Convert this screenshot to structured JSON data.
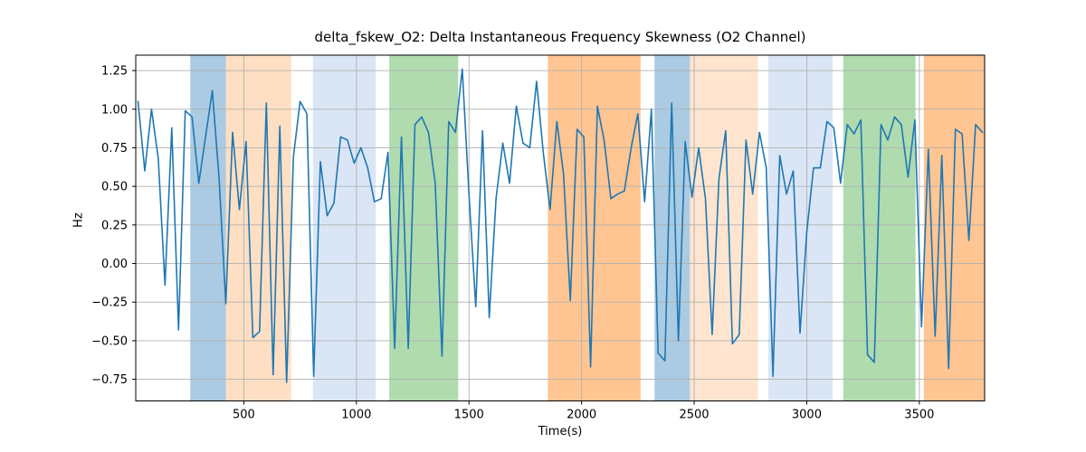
{
  "figure": {
    "title": "delta_fskew_O2: Delta Instantaneous Frequency Skewness (O2 Channel)",
    "xlabel": "Time(s)",
    "ylabel": "Hz"
  },
  "chart_data": {
    "type": "line",
    "title": "delta_fskew_O2: Delta Instantaneous Frequency Skewness (O2 Channel)",
    "xlabel": "Time(s)",
    "ylabel": "Hz",
    "xlim": [
      20,
      3790
    ],
    "ylim": [
      -0.89,
      1.35
    ],
    "xticks": [
      500,
      1000,
      1500,
      2000,
      2500,
      3000,
      3500
    ],
    "yticks": [
      -0.75,
      -0.5,
      -0.25,
      0.0,
      0.25,
      0.5,
      0.75,
      1.0,
      1.25
    ],
    "grid": true,
    "legend": false,
    "line_color": "#1f77b4",
    "grid_color": "#b0b0b0",
    "x": [
      30,
      60,
      90,
      120,
      150,
      180,
      210,
      240,
      270,
      300,
      330,
      360,
      390,
      420,
      450,
      480,
      510,
      540,
      570,
      600,
      630,
      660,
      690,
      720,
      750,
      780,
      810,
      840,
      870,
      900,
      930,
      960,
      990,
      1020,
      1050,
      1080,
      1110,
      1140,
      1170,
      1200,
      1230,
      1260,
      1290,
      1320,
      1350,
      1380,
      1410,
      1440,
      1470,
      1500,
      1530,
      1560,
      1590,
      1620,
      1650,
      1680,
      1710,
      1740,
      1770,
      1800,
      1830,
      1860,
      1890,
      1920,
      1950,
      1980,
      2010,
      2040,
      2070,
      2100,
      2130,
      2160,
      2190,
      2220,
      2250,
      2280,
      2310,
      2340,
      2370,
      2400,
      2430,
      2460,
      2490,
      2520,
      2550,
      2580,
      2610,
      2640,
      2670,
      2700,
      2730,
      2760,
      2790,
      2820,
      2850,
      2880,
      2910,
      2940,
      2970,
      3000,
      3030,
      3060,
      3090,
      3120,
      3150,
      3180,
      3210,
      3240,
      3270,
      3300,
      3330,
      3360,
      3390,
      3420,
      3450,
      3480,
      3510,
      3540,
      3570,
      3600,
      3630,
      3660,
      3690,
      3720,
      3750,
      3780
    ],
    "y": [
      1.05,
      0.6,
      1.0,
      0.68,
      -0.14,
      0.88,
      -0.43,
      0.99,
      0.95,
      0.52,
      0.82,
      1.12,
      0.55,
      -0.26,
      0.85,
      0.35,
      0.79,
      -0.48,
      -0.44,
      1.04,
      -0.72,
      0.89,
      -0.77,
      0.69,
      1.05,
      0.97,
      -0.73,
      0.66,
      0.31,
      0.39,
      0.82,
      0.8,
      0.65,
      0.75,
      0.62,
      0.4,
      0.42,
      0.72,
      -0.55,
      0.82,
      -0.55,
      0.9,
      0.95,
      0.85,
      0.52,
      -0.6,
      0.92,
      0.85,
      1.26,
      0.45,
      -0.28,
      0.86,
      -0.35,
      0.42,
      0.78,
      0.52,
      1.02,
      0.78,
      0.75,
      1.18,
      0.72,
      0.35,
      0.92,
      0.58,
      -0.24,
      0.87,
      0.82,
      -0.67,
      1.02,
      0.8,
      0.42,
      0.45,
      0.47,
      0.75,
      0.97,
      0.4,
      1.0,
      -0.58,
      -0.63,
      1.04,
      -0.5,
      0.79,
      0.43,
      0.75,
      0.42,
      -0.46,
      0.55,
      0.86,
      -0.52,
      -0.46,
      0.8,
      0.45,
      0.85,
      0.62,
      -0.73,
      0.7,
      0.45,
      0.6,
      -0.45,
      0.2,
      0.62,
      0.62,
      0.92,
      0.88,
      0.52,
      0.9,
      0.84,
      0.93,
      -0.59,
      -0.64,
      0.9,
      0.8,
      0.95,
      0.9,
      0.56,
      0.93,
      -0.41,
      0.74,
      -0.47,
      0.7,
      -0.68,
      0.87,
      0.84,
      0.15,
      0.9,
      0.85
    ],
    "bands": [
      {
        "x0": 262,
        "x1": 420,
        "color": "rgba(31,119,180,0.38)"
      },
      {
        "x0": 420,
        "x1": 710,
        "color": "rgba(255,127,14,0.25)"
      },
      {
        "x0": 807,
        "x1": 1086,
        "color": "rgba(174,199,232,0.45)"
      },
      {
        "x0": 1146,
        "x1": 1452,
        "color": "rgba(44,160,44,0.38)"
      },
      {
        "x0": 1850,
        "x1": 2262,
        "color": "rgba(255,127,14,0.45)"
      },
      {
        "x0": 2324,
        "x1": 2481,
        "color": "rgba(31,119,180,0.38)"
      },
      {
        "x0": 2481,
        "x1": 2783,
        "color": "rgba(255,127,14,0.20)"
      },
      {
        "x0": 2829,
        "x1": 3115,
        "color": "rgba(174,199,232,0.45)"
      },
      {
        "x0": 3162,
        "x1": 3483,
        "color": "rgba(44,160,44,0.38)"
      },
      {
        "x0": 3520,
        "x1": 3790,
        "color": "rgba(255,127,14,0.45)"
      }
    ]
  }
}
